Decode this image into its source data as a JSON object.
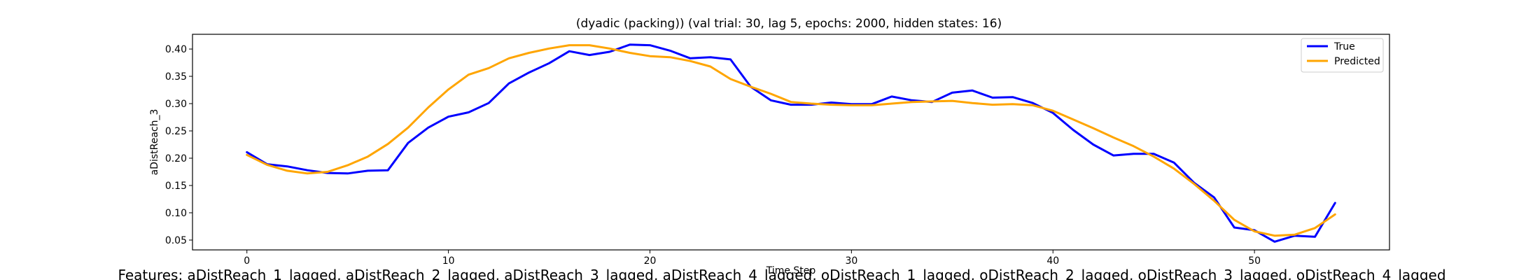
{
  "chart_data": {
    "type": "line",
    "title": "(dyadic (packing)) (val trial: 30, lag 5, epochs: 2000, hidden states: 16)",
    "xlabel": "Time Step",
    "ylabel": "aDistReach_3",
    "xlim": [
      -2.7,
      56.7
    ],
    "ylim": [
      0.032,
      0.427
    ],
    "xticks": [
      0,
      10,
      20,
      30,
      40,
      50
    ],
    "xtick_labels": [
      "0",
      "10",
      "20",
      "30",
      "40",
      "50"
    ],
    "yticks": [
      0.05,
      0.1,
      0.15,
      0.2,
      0.25,
      0.3,
      0.35,
      0.4
    ],
    "ytick_labels": [
      "0.05",
      "0.10",
      "0.15",
      "0.20",
      "0.25",
      "0.30",
      "0.35",
      "0.40"
    ],
    "grid": false,
    "legend_position": "top-right",
    "x": [
      0,
      1,
      2,
      3,
      4,
      5,
      6,
      7,
      8,
      9,
      10,
      11,
      12,
      13,
      14,
      15,
      16,
      17,
      18,
      19,
      20,
      21,
      22,
      23,
      24,
      25,
      26,
      27,
      28,
      29,
      30,
      31,
      32,
      33,
      34,
      35,
      36,
      37,
      38,
      39,
      40,
      41,
      42,
      43,
      44,
      45,
      46,
      47,
      48,
      49,
      50,
      51,
      52,
      53,
      54
    ],
    "series": [
      {
        "name": "True",
        "color": "#0000ff",
        "values": [
          0.211,
          0.189,
          0.185,
          0.178,
          0.173,
          0.172,
          0.177,
          0.178,
          0.228,
          0.256,
          0.276,
          0.284,
          0.301,
          0.337,
          0.357,
          0.374,
          0.396,
          0.389,
          0.395,
          0.408,
          0.407,
          0.397,
          0.383,
          0.385,
          0.381,
          0.331,
          0.306,
          0.298,
          0.298,
          0.302,
          0.299,
          0.299,
          0.313,
          0.306,
          0.303,
          0.32,
          0.324,
          0.311,
          0.312,
          0.301,
          0.283,
          0.252,
          0.225,
          0.205,
          0.208,
          0.208,
          0.192,
          0.155,
          0.128,
          0.073,
          0.068,
          0.047,
          0.058,
          0.056,
          0.118
        ]
      },
      {
        "name": "Predicted",
        "color": "#ffa500",
        "values": [
          0.206,
          0.188,
          0.177,
          0.172,
          0.175,
          0.187,
          0.203,
          0.226,
          0.256,
          0.293,
          0.326,
          0.353,
          0.365,
          0.383,
          0.393,
          0.401,
          0.407,
          0.407,
          0.401,
          0.393,
          0.387,
          0.385,
          0.378,
          0.368,
          0.345,
          0.331,
          0.318,
          0.303,
          0.3,
          0.298,
          0.297,
          0.297,
          0.3,
          0.303,
          0.304,
          0.305,
          0.301,
          0.298,
          0.299,
          0.297,
          0.287,
          0.271,
          0.255,
          0.238,
          0.222,
          0.203,
          0.181,
          0.153,
          0.122,
          0.087,
          0.066,
          0.058,
          0.06,
          0.072,
          0.097
        ]
      }
    ]
  },
  "footer_text": "Features: aDistReach_1_lagged, aDistReach_2_lagged, aDistReach_3_lagged, aDistReach_4_lagged, oDistReach_1_lagged, oDistReach_2_lagged, oDistReach_3_lagged, oDistReach_4_lagged"
}
